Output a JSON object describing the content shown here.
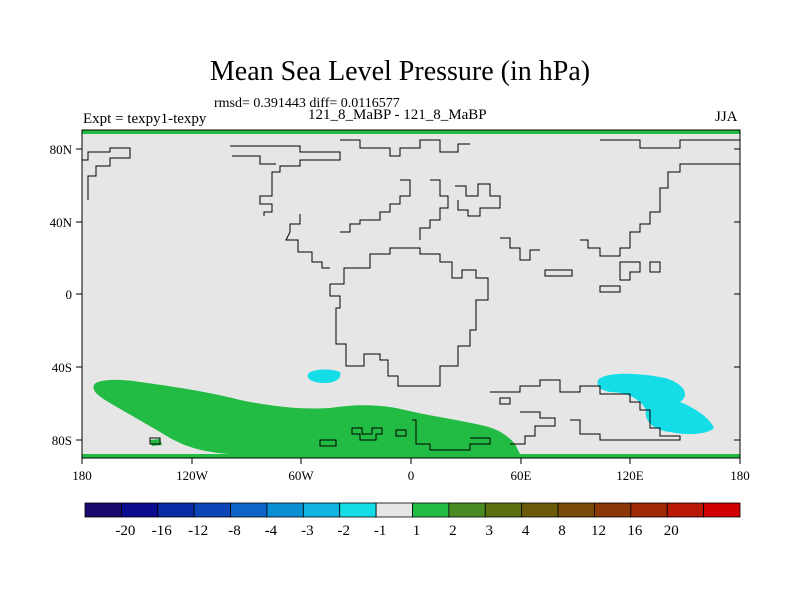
{
  "title": "Mean Sea Level Pressure (in hPa)",
  "stats": "rmsd= 0.391443 diff= 0.0116577",
  "experiment": "Expt = texpy1-texpy",
  "subtitle": "121_8_MaBP - 121_8_MaBP",
  "season": "JJA",
  "lat_ticks": [
    "80N",
    "40N",
    "0",
    "40S",
    "80S"
  ],
  "lon_ticks": [
    "180",
    "120W",
    "60W",
    "0",
    "60E",
    "120E",
    "180"
  ],
  "colorbar": {
    "colors": [
      "#1b0a6e",
      "#0b0b8f",
      "#0b2aa6",
      "#0b46b8",
      "#0b64c6",
      "#0b8fd4",
      "#10b4e0",
      "#15dde8",
      "#e6e6e6",
      "#22bb44",
      "#4a8a22",
      "#5c7010",
      "#6a5a0a",
      "#7a4a08",
      "#8a3806",
      "#a02804",
      "#b81804",
      "#d00000"
    ],
    "labels": [
      "-20",
      "-16",
      "-12",
      "-8",
      "-4",
      "-3",
      "-2",
      "-1",
      "1",
      "2",
      "3",
      "4",
      "8",
      "12",
      "16",
      "20"
    ]
  },
  "colors": {
    "land_background": "#e6e6e6",
    "positive_anomaly": "#22bb44",
    "negative_anomaly": "#15dde8",
    "coastline": "#000000"
  }
}
